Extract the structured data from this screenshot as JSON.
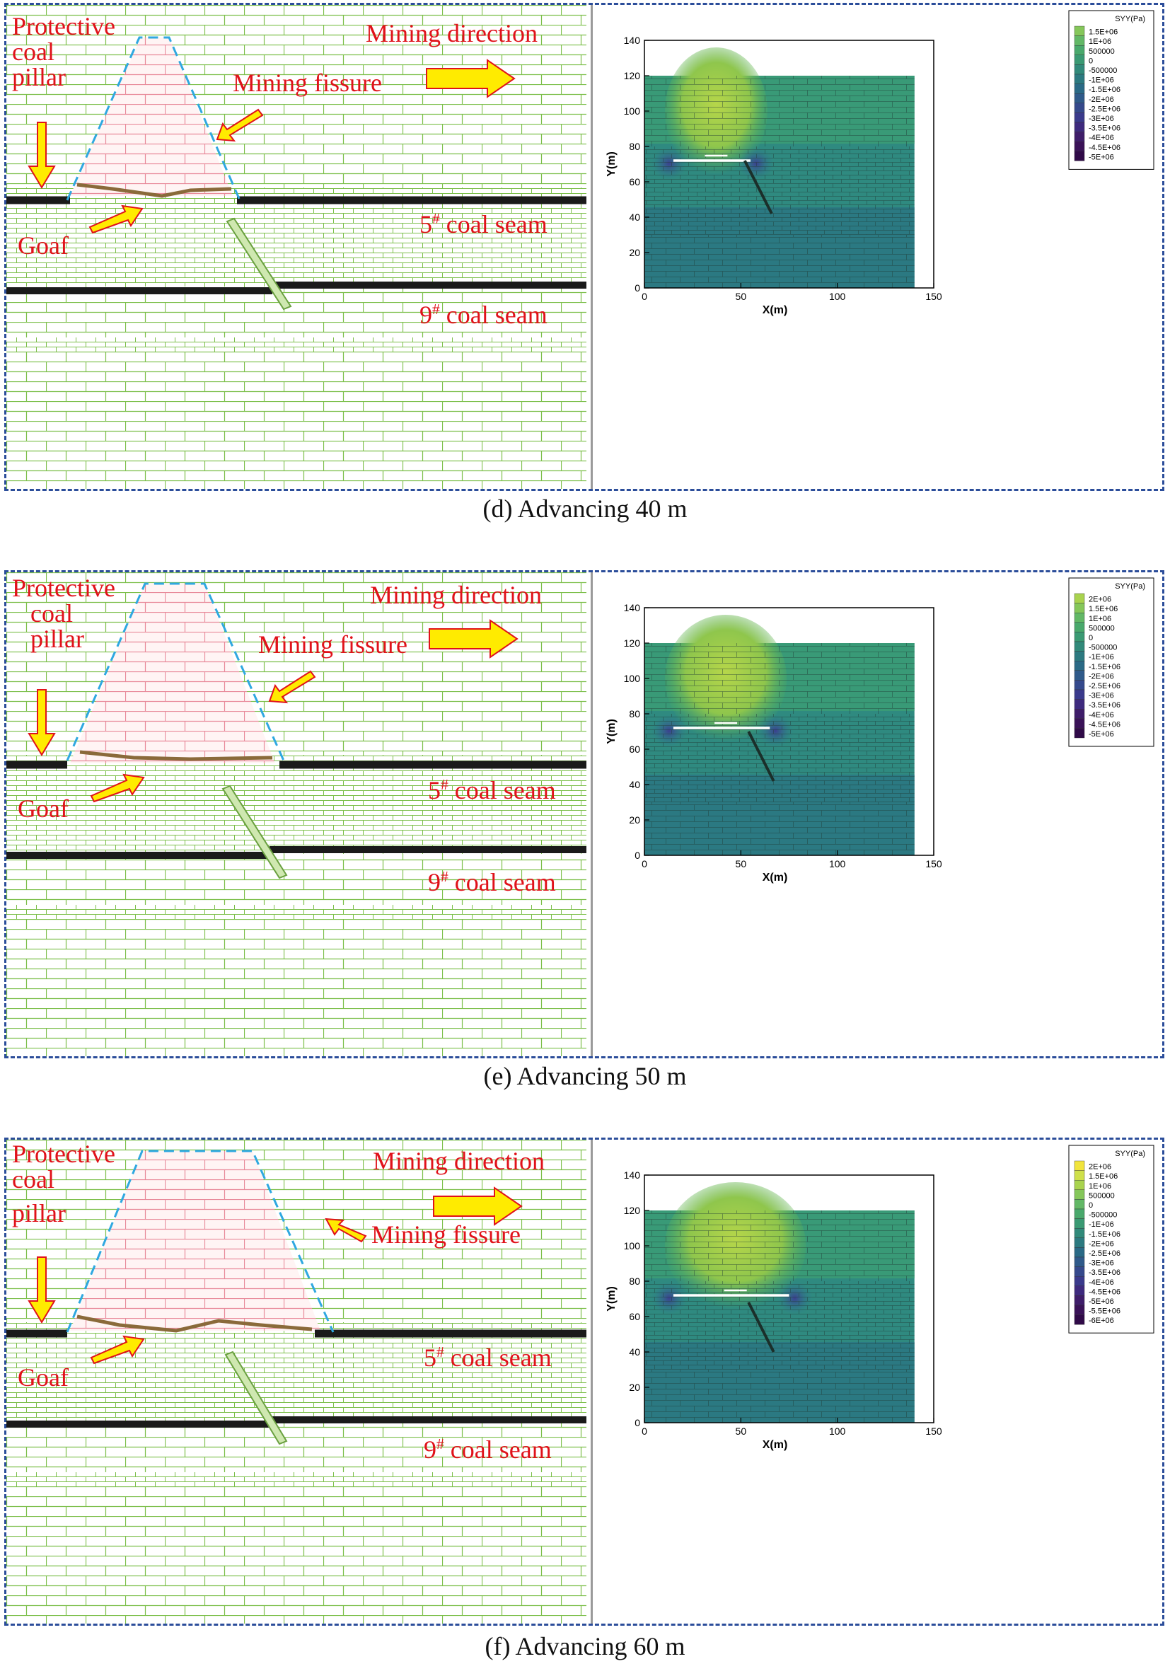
{
  "labels": {
    "pillar_line1": "Protective",
    "pillar_line2": "coal",
    "pillar_line3": "pillar",
    "mining_direction": "Mining direction",
    "mining_fissure": "Mining fissure",
    "goaf": "Goaf",
    "seam5_prefix": "5",
    "seam9_prefix": "9",
    "seam_sup": "#",
    "seam_suffix": " coal seam"
  },
  "colors": {
    "block_stroke": "#7cbf4a",
    "pink_stroke": "#e88a9a",
    "seam": "#1a1a1a",
    "dash": "#2fa8e0",
    "arrow_fill": "#ffeb00",
    "arrow_stroke": "#e0121a",
    "label": "#e0121a",
    "border": "#2b4d9a"
  },
  "panels": [
    {
      "caption": "(d)  Advancing 40 m",
      "legend_title": "SYY(Pa)",
      "legend_entries": [
        "1.5E+06",
        "1E+06",
        "500000",
        "0",
        "-500000",
        "-1E+06",
        "-1.5E+06",
        "-2E+06",
        "-2.5E+06",
        "-3E+06",
        "-3.5E+06",
        "-4E+06",
        "-4.5E+06",
        "-5E+06"
      ]
    },
    {
      "caption": "(e)  Advancing 50 m",
      "legend_title": "SYY(Pa)",
      "legend_entries": [
        "2E+06",
        "1.5E+06",
        "1E+06",
        "500000",
        "0",
        "-500000",
        "-1E+06",
        "-1.5E+06",
        "-2E+06",
        "-2.5E+06",
        "-3E+06",
        "-3.5E+06",
        "-4E+06",
        "-4.5E+06",
        "-5E+06"
      ]
    },
    {
      "caption": "(f)  Advancing 60 m",
      "legend_title": "SYY(Pa)",
      "legend_entries": [
        "2E+06",
        "1.5E+06",
        "1E+06",
        "500000",
        "0",
        "-500000",
        "-1E+06",
        "-1.5E+06",
        "-2E+06",
        "-2.5E+06",
        "-3E+06",
        "-3.5E+06",
        "-4E+06",
        "-4.5E+06",
        "-5E+06",
        "-5.5E+06",
        "-6E+06"
      ]
    }
  ],
  "chart_data": [
    {
      "type": "heatmap",
      "title": "SYY(Pa)",
      "xlabel": "X(m)",
      "ylabel": "Y(m)",
      "xlim": [
        0,
        150
      ],
      "ylim": [
        0,
        140
      ],
      "x_ticks": [
        0,
        50,
        100,
        150
      ],
      "y_ticks": [
        0,
        20,
        40,
        60,
        80,
        100,
        120,
        140
      ],
      "model_extent_x": [
        0,
        140
      ],
      "model_extent_y": [
        0,
        120
      ],
      "goaf_x": [
        15,
        55
      ],
      "goaf_y": 72,
      "fissure": [
        [
          52,
          72
        ],
        [
          66,
          42
        ]
      ]
    },
    {
      "type": "heatmap",
      "title": "SYY(Pa)",
      "xlabel": "X(m)",
      "ylabel": "Y(m)",
      "xlim": [
        0,
        150
      ],
      "ylim": [
        0,
        140
      ],
      "x_ticks": [
        0,
        50,
        100,
        150
      ],
      "y_ticks": [
        0,
        20,
        40,
        60,
        80,
        100,
        120,
        140
      ],
      "model_extent_x": [
        0,
        140
      ],
      "model_extent_y": [
        0,
        120
      ],
      "goaf_x": [
        15,
        65
      ],
      "goaf_y": 72,
      "fissure": [
        [
          54,
          70
        ],
        [
          67,
          42
        ]
      ]
    },
    {
      "type": "heatmap",
      "title": "SYY(Pa)",
      "xlabel": "X(m)",
      "ylabel": "Y(m)",
      "xlim": [
        0,
        150
      ],
      "ylim": [
        0,
        140
      ],
      "x_ticks": [
        0,
        50,
        100,
        150
      ],
      "y_ticks": [
        0,
        20,
        40,
        60,
        80,
        100,
        120,
        140
      ],
      "model_extent_x": [
        0,
        140
      ],
      "model_extent_y": [
        0,
        120
      ],
      "goaf_x": [
        15,
        75
      ],
      "goaf_y": 72,
      "fissure": [
        [
          54,
          68
        ],
        [
          67,
          40
        ]
      ]
    }
  ]
}
